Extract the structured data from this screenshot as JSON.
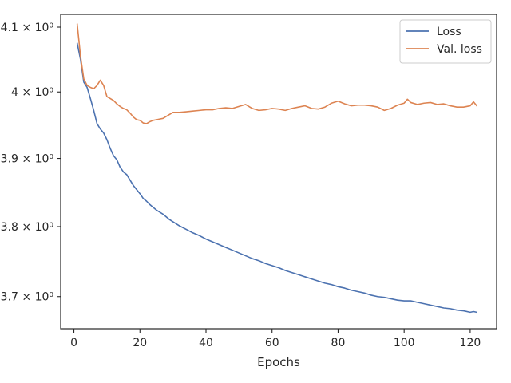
{
  "chart_data": {
    "type": "line",
    "title": "",
    "xlabel": "Epochs",
    "ylabel": "",
    "yscale": "log",
    "xlim": [
      -4,
      128
    ],
    "ylim": [
      3.655,
      4.12
    ],
    "grid": false,
    "legend_placement": "top-right",
    "x_ticks": [
      0,
      20,
      40,
      60,
      80,
      100,
      120
    ],
    "y_ticks": [
      {
        "value": 4.1,
        "label": "4.1 × 10⁰"
      },
      {
        "value": 4.0,
        "label": "4 × 10⁰"
      },
      {
        "value": 3.9,
        "label": "3.9 × 10⁰"
      },
      {
        "value": 3.8,
        "label": "3.8 × 10⁰"
      },
      {
        "value": 3.7,
        "label": "3.7 × 10⁰"
      }
    ],
    "series": [
      {
        "name": "Loss",
        "color": "#4c72b0",
        "points": [
          [
            1,
            4.075
          ],
          [
            2,
            4.05
          ],
          [
            3,
            4.015
          ],
          [
            4,
            4.007
          ],
          [
            5,
            3.99
          ],
          [
            6,
            3.972
          ],
          [
            7,
            3.952
          ],
          [
            8,
            3.944
          ],
          [
            9,
            3.938
          ],
          [
            10,
            3.928
          ],
          [
            11,
            3.915
          ],
          [
            12,
            3.904
          ],
          [
            13,
            3.898
          ],
          [
            14,
            3.887
          ],
          [
            15,
            3.88
          ],
          [
            16,
            3.876
          ],
          [
            17,
            3.868
          ],
          [
            18,
            3.86
          ],
          [
            19,
            3.854
          ],
          [
            20,
            3.848
          ],
          [
            21,
            3.841
          ],
          [
            22,
            3.837
          ],
          [
            23,
            3.832
          ],
          [
            24,
            3.828
          ],
          [
            25,
            3.824
          ],
          [
            26,
            3.821
          ],
          [
            27,
            3.818
          ],
          [
            28,
            3.814
          ],
          [
            29,
            3.81
          ],
          [
            30,
            3.807
          ],
          [
            32,
            3.801
          ],
          [
            34,
            3.796
          ],
          [
            36,
            3.791
          ],
          [
            38,
            3.787
          ],
          [
            40,
            3.782
          ],
          [
            42,
            3.778
          ],
          [
            44,
            3.774
          ],
          [
            46,
            3.77
          ],
          [
            48,
            3.766
          ],
          [
            50,
            3.762
          ],
          [
            52,
            3.758
          ],
          [
            54,
            3.754
          ],
          [
            56,
            3.751
          ],
          [
            58,
            3.747
          ],
          [
            60,
            3.744
          ],
          [
            62,
            3.741
          ],
          [
            64,
            3.737
          ],
          [
            66,
            3.734
          ],
          [
            68,
            3.731
          ],
          [
            70,
            3.728
          ],
          [
            72,
            3.725
          ],
          [
            74,
            3.722
          ],
          [
            76,
            3.719
          ],
          [
            78,
            3.717
          ],
          [
            80,
            3.714
          ],
          [
            82,
            3.712
          ],
          [
            84,
            3.709
          ],
          [
            86,
            3.707
          ],
          [
            88,
            3.705
          ],
          [
            90,
            3.702
          ],
          [
            92,
            3.7
          ],
          [
            94,
            3.699
          ],
          [
            96,
            3.697
          ],
          [
            98,
            3.695
          ],
          [
            100,
            3.694
          ],
          [
            102,
            3.694
          ],
          [
            104,
            3.692
          ],
          [
            106,
            3.69
          ],
          [
            108,
            3.688
          ],
          [
            110,
            3.686
          ],
          [
            112,
            3.684
          ],
          [
            114,
            3.683
          ],
          [
            116,
            3.681
          ],
          [
            118,
            3.68
          ],
          [
            120,
            3.678
          ],
          [
            121,
            3.679
          ],
          [
            122,
            3.678
          ]
        ]
      },
      {
        "name": "Val. loss",
        "color": "#dd8452",
        "points": [
          [
            1,
            4.105
          ],
          [
            2,
            4.055
          ],
          [
            3,
            4.02
          ],
          [
            4,
            4.01
          ],
          [
            5,
            4.007
          ],
          [
            6,
            4.005
          ],
          [
            7,
            4.01
          ],
          [
            8,
            4.018
          ],
          [
            9,
            4.01
          ],
          [
            10,
            3.993
          ],
          [
            11,
            3.99
          ],
          [
            12,
            3.987
          ],
          [
            13,
            3.982
          ],
          [
            14,
            3.978
          ],
          [
            15,
            3.975
          ],
          [
            16,
            3.973
          ],
          [
            17,
            3.968
          ],
          [
            18,
            3.962
          ],
          [
            19,
            3.958
          ],
          [
            20,
            3.957
          ],
          [
            21,
            3.953
          ],
          [
            22,
            3.952
          ],
          [
            23,
            3.955
          ],
          [
            24,
            3.957
          ],
          [
            25,
            3.958
          ],
          [
            26,
            3.959
          ],
          [
            27,
            3.96
          ],
          [
            28,
            3.963
          ],
          [
            29,
            3.966
          ],
          [
            30,
            3.969
          ],
          [
            32,
            3.969
          ],
          [
            34,
            3.97
          ],
          [
            36,
            3.971
          ],
          [
            38,
            3.972
          ],
          [
            40,
            3.973
          ],
          [
            42,
            3.973
          ],
          [
            44,
            3.975
          ],
          [
            46,
            3.976
          ],
          [
            48,
            3.975
          ],
          [
            50,
            3.978
          ],
          [
            52,
            3.981
          ],
          [
            54,
            3.975
          ],
          [
            56,
            3.972
          ],
          [
            58,
            3.973
          ],
          [
            60,
            3.975
          ],
          [
            62,
            3.974
          ],
          [
            64,
            3.972
          ],
          [
            66,
            3.975
          ],
          [
            68,
            3.977
          ],
          [
            70,
            3.979
          ],
          [
            72,
            3.975
          ],
          [
            74,
            3.974
          ],
          [
            76,
            3.977
          ],
          [
            78,
            3.983
          ],
          [
            80,
            3.986
          ],
          [
            82,
            3.982
          ],
          [
            84,
            3.979
          ],
          [
            86,
            3.98
          ],
          [
            88,
            3.98
          ],
          [
            90,
            3.979
          ],
          [
            92,
            3.977
          ],
          [
            94,
            3.972
          ],
          [
            96,
            3.975
          ],
          [
            98,
            3.98
          ],
          [
            100,
            3.983
          ],
          [
            101,
            3.989
          ],
          [
            102,
            3.984
          ],
          [
            104,
            3.981
          ],
          [
            106,
            3.983
          ],
          [
            108,
            3.984
          ],
          [
            110,
            3.981
          ],
          [
            112,
            3.982
          ],
          [
            114,
            3.979
          ],
          [
            116,
            3.977
          ],
          [
            118,
            3.977
          ],
          [
            120,
            3.979
          ],
          [
            121,
            3.985
          ],
          [
            122,
            3.979
          ]
        ]
      }
    ]
  }
}
